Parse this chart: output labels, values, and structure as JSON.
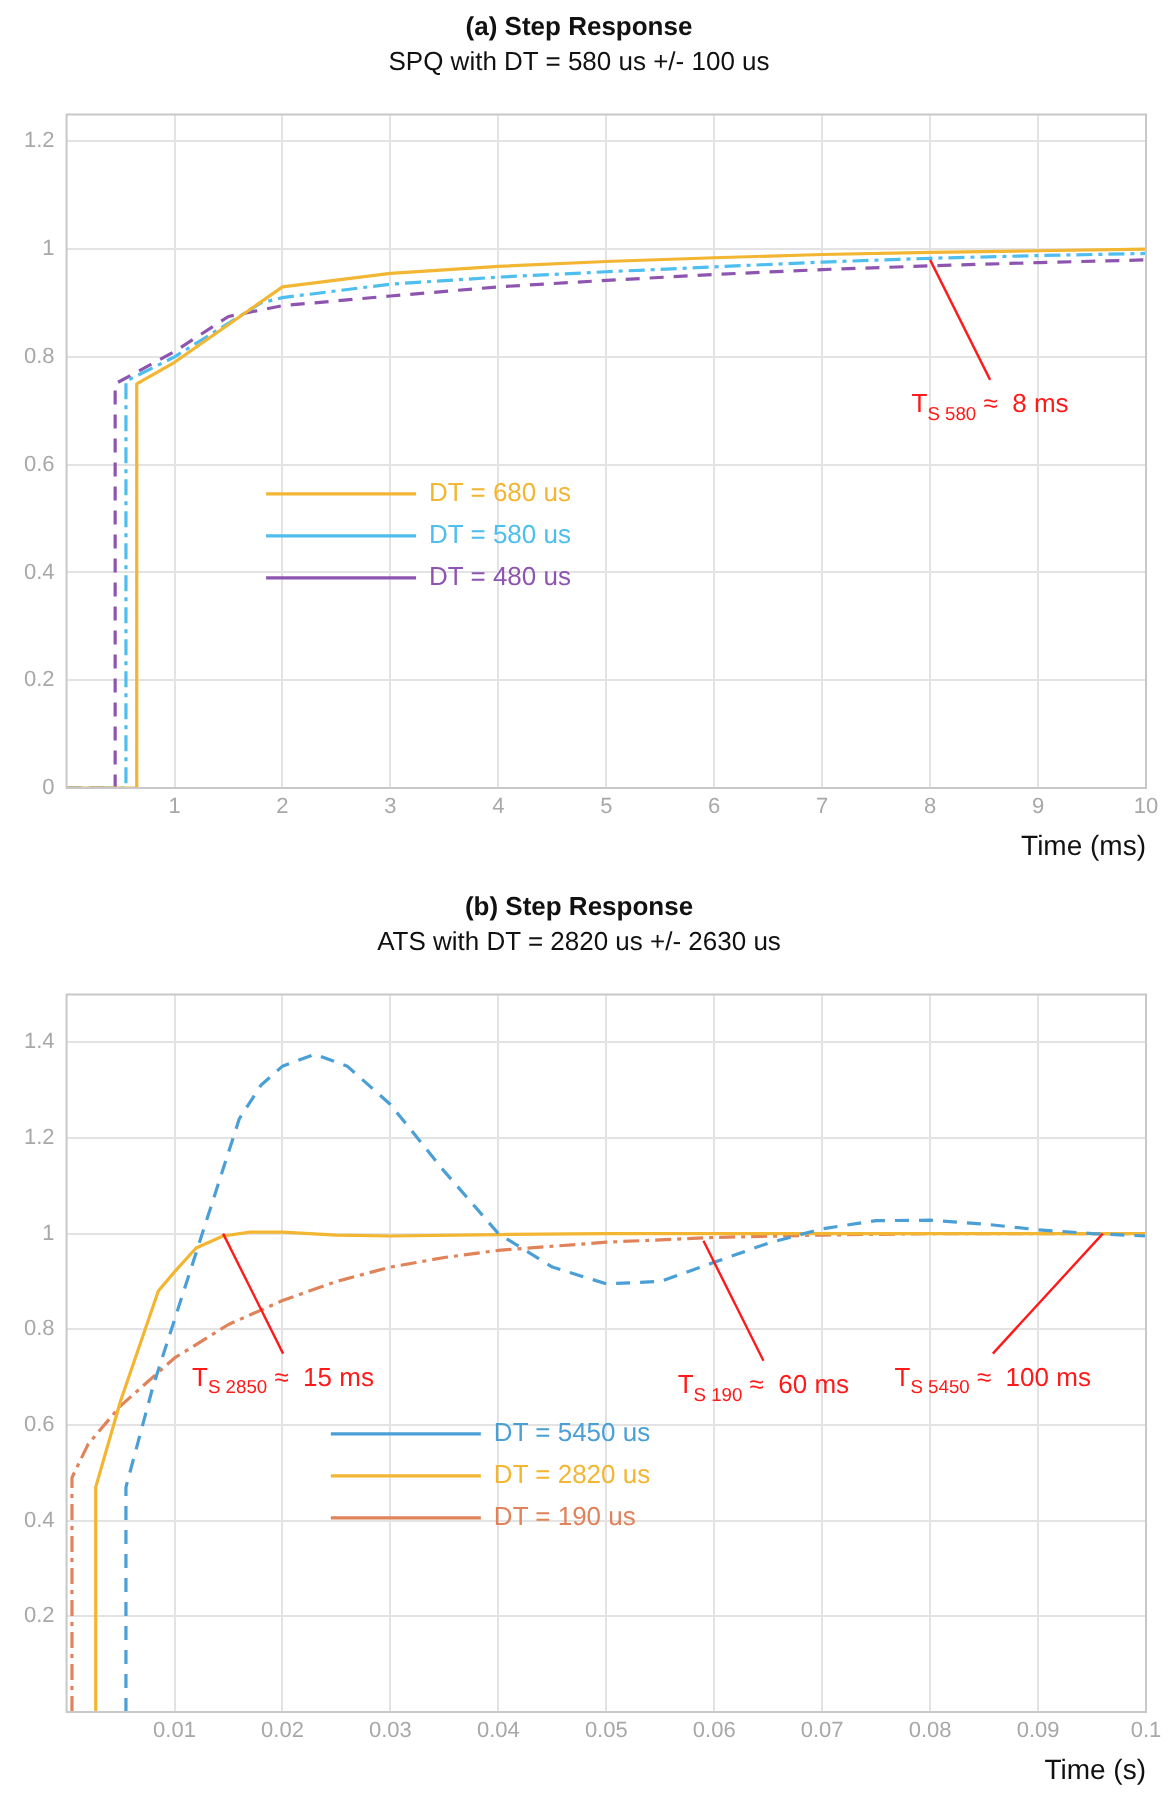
{
  "chart_data": [
    {
      "type": "line",
      "title": "(a) Step Response",
      "subtitle": "SPQ with DT = 580 us +/- 100 us",
      "xlabel": "Time (ms)",
      "xlim": [
        0,
        10
      ],
      "ylim": [
        0,
        1.25
      ],
      "xticks": [
        1,
        2,
        3,
        4,
        5,
        6,
        7,
        8,
        9,
        10
      ],
      "yticks": [
        0,
        0.2,
        0.4,
        0.6,
        0.8,
        1,
        1.2
      ],
      "grid": true,
      "legend": "center left",
      "series": [
        {
          "name": "DT = 680 us",
          "color": "#f2b632",
          "line_style": "solid",
          "x": [
            0,
            0.65,
            0.65,
            1,
            2,
            3,
            4,
            5,
            6,
            7,
            8,
            9,
            10
          ],
          "values": [
            0,
            0,
            0.75,
            0.79,
            0.93,
            0.955,
            0.968,
            0.977,
            0.984,
            0.99,
            0.994,
            0.997,
            1.0
          ]
        },
        {
          "name": "DT = 580 us",
          "color": "#4dbeee",
          "line_style": "dashdot",
          "x": [
            0,
            0.55,
            0.55,
            1,
            1.8,
            2,
            3,
            4,
            5,
            6,
            7,
            8,
            9,
            10
          ],
          "values": [
            0,
            0,
            0.755,
            0.8,
            0.9,
            0.91,
            0.935,
            0.948,
            0.958,
            0.967,
            0.976,
            0.983,
            0.988,
            0.992
          ]
        },
        {
          "name": "DT = 480 us",
          "color": "#8e55b0",
          "line_style": "dashed",
          "x": [
            0,
            0.45,
            0.45,
            1,
            1.5,
            2,
            3,
            4,
            5,
            6,
            7,
            8,
            9,
            10
          ],
          "values": [
            0,
            0,
            0.75,
            0.81,
            0.875,
            0.895,
            0.913,
            0.93,
            0.942,
            0.953,
            0.962,
            0.969,
            0.975,
            0.98
          ]
        }
      ],
      "annotations": [
        {
          "text": "T$_{S 580}$ ≈  8 ms",
          "x": 8,
          "y": 0.98
        }
      ]
    },
    {
      "type": "line",
      "title": "(b) Step Response",
      "subtitle": "ATS with DT = 2820 us +/- 2630 us",
      "xlabel": "Time (s)",
      "xlim": [
        0,
        0.1
      ],
      "ylim": [
        0,
        1.5
      ],
      "xticks": [
        0.01,
        0.02,
        0.03,
        0.04,
        0.05,
        0.06,
        0.07,
        0.08,
        0.09,
        0.1
      ],
      "yticks": [
        0.2,
        0.4,
        0.6,
        0.8,
        1,
        1.2,
        1.4
      ],
      "grid": true,
      "legend": "bottom center",
      "series": [
        {
          "name": "DT = 5450 us",
          "color": "#4a9fd6",
          "line_style": "dashed",
          "x": [
            0.0055,
            0.0055,
            0.008,
            0.01,
            0.012,
            0.014,
            0.016,
            0.018,
            0.02,
            0.023,
            0.026,
            0.03,
            0.035,
            0.04,
            0.045,
            0.05,
            0.055,
            0.06,
            0.065,
            0.07,
            0.075,
            0.08,
            0.085,
            0.09,
            0.095,
            0.1
          ],
          "values": [
            0,
            0.47,
            0.68,
            0.82,
            0.96,
            1.1,
            1.24,
            1.31,
            1.35,
            1.375,
            1.35,
            1.27,
            1.13,
            1.0,
            0.93,
            0.895,
            0.9,
            0.94,
            0.98,
            1.01,
            1.027,
            1.028,
            1.02,
            1.008,
            1.0,
            0.995
          ]
        },
        {
          "name": "DT = 2820 us",
          "color": "#f2b632",
          "line_style": "solid",
          "x": [
            0.0027,
            0.0027,
            0.005,
            0.0085,
            0.01,
            0.012,
            0.0145,
            0.017,
            0.02,
            0.025,
            0.03,
            0.04,
            0.05,
            0.1
          ],
          "values": [
            0,
            0.47,
            0.65,
            0.88,
            0.92,
            0.97,
            0.995,
            1.003,
            1.003,
            0.997,
            0.995,
            0.998,
            1.0,
            1.0
          ]
        },
        {
          "name": "DT = 190 us",
          "color": "#e0825a",
          "line_style": "dashdot",
          "x": [
            0.0005,
            0.0005,
            0.002,
            0.005,
            0.01,
            0.015,
            0.02,
            0.025,
            0.03,
            0.035,
            0.04,
            0.05,
            0.06,
            0.07,
            0.08,
            0.1
          ],
          "values": [
            0,
            0.49,
            0.56,
            0.64,
            0.74,
            0.81,
            0.86,
            0.9,
            0.93,
            0.95,
            0.965,
            0.982,
            0.992,
            0.997,
            1.0,
            1.0
          ]
        }
      ],
      "annotations": [
        {
          "text": "T$_{S 2850}$ ≈  15 ms",
          "x": 0.0145,
          "y": 1.0
        },
        {
          "text": "T$_{S 190}$ ≈  60 ms",
          "x": 0.059,
          "y": 0.985
        },
        {
          "text": "T$_{S 5450}$ ≈  100 ms",
          "x": 0.096,
          "y": 1.0
        }
      ]
    }
  ]
}
